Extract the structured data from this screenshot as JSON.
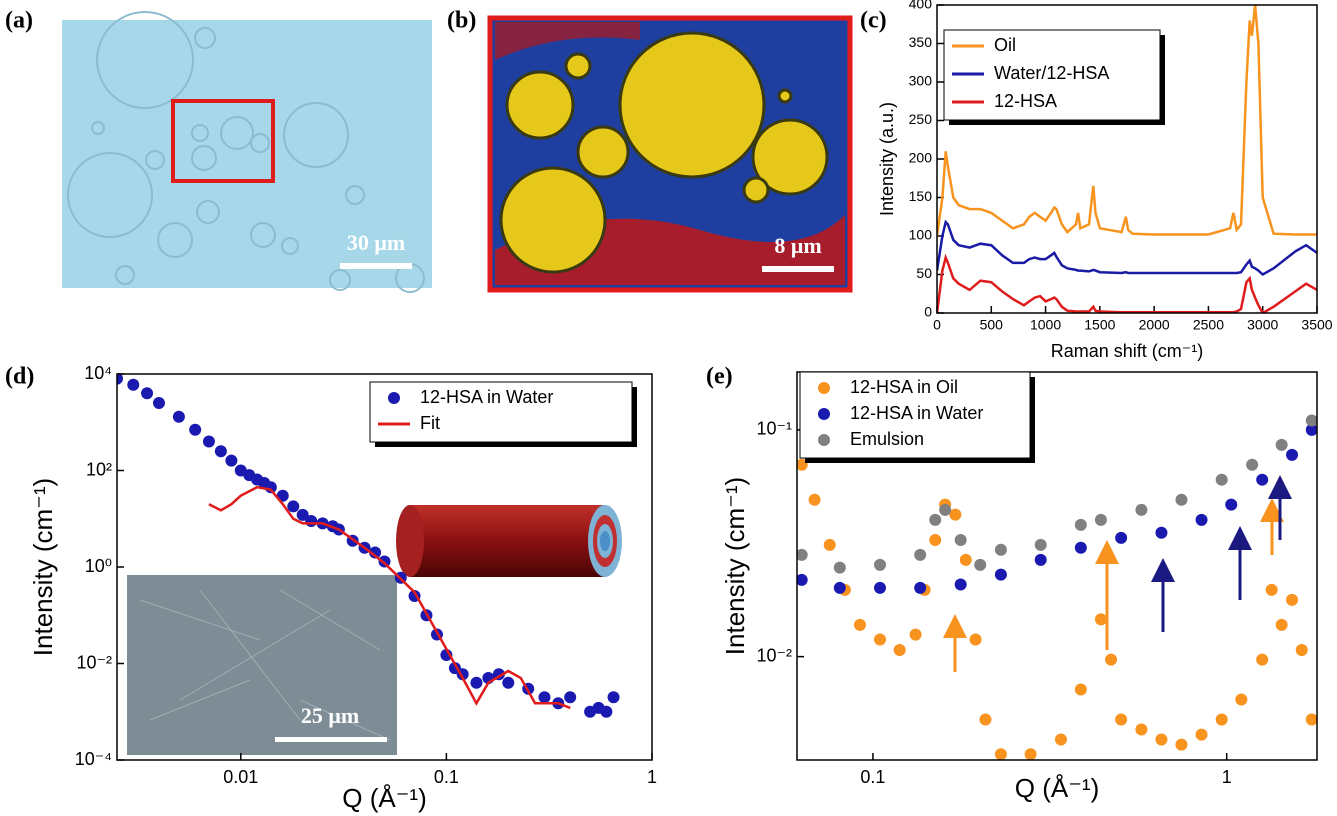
{
  "images": [
    {
      "label": "(a)",
      "scale_bar": "30 μm"
    },
    {
      "label": "(b)",
      "scale_bar": "8 μm"
    }
  ],
  "chart_data": [
    {
      "type": "line",
      "panel_label": "(c)",
      "xlabel": "Raman shift (cm⁻¹)",
      "ylabel": "Intensity (a.u.)",
      "xlim": [
        0,
        3500
      ],
      "ylim": [
        0,
        400
      ],
      "xticks": [
        0,
        500,
        1000,
        1500,
        2000,
        2500,
        3000,
        3500
      ],
      "yticks": [
        0,
        50,
        100,
        150,
        200,
        250,
        300,
        350,
        400
      ],
      "legend": "upper left",
      "x": [
        0,
        50,
        80,
        100,
        150,
        200,
        300,
        400,
        500,
        600,
        700,
        800,
        850,
        900,
        950,
        1000,
        1050,
        1080,
        1100,
        1150,
        1200,
        1280,
        1300,
        1320,
        1400,
        1440,
        1460,
        1500,
        1700,
        1740,
        1760,
        1800,
        2000,
        2500,
        2700,
        2730,
        2760,
        2800,
        2850,
        2880,
        2900,
        2930,
        2960,
        3000,
        3100,
        3300,
        3400,
        3500
      ],
      "series": [
        {
          "name": "Oil",
          "color": "#f7931e",
          "values": [
            100,
            150,
            210,
            190,
            150,
            140,
            135,
            135,
            130,
            120,
            110,
            115,
            125,
            130,
            125,
            120,
            130,
            137,
            135,
            115,
            105,
            115,
            130,
            110,
            115,
            165,
            130,
            110,
            105,
            125,
            108,
            103,
            102,
            102,
            110,
            130,
            108,
            115,
            300,
            380,
            360,
            400,
            350,
            150,
            103,
            102,
            102,
            102
          ]
        },
        {
          "name": "Water/12-HSA",
          "color": "#1a1aa6",
          "values": [
            55,
            100,
            118,
            115,
            95,
            88,
            85,
            90,
            88,
            75,
            65,
            65,
            70,
            72,
            70,
            70,
            75,
            78,
            73,
            62,
            58,
            56,
            55,
            55,
            54,
            56,
            55,
            53,
            52,
            53,
            52,
            52,
            52,
            52,
            52,
            52,
            52,
            53,
            63,
            68,
            60,
            58,
            55,
            50,
            58,
            80,
            88,
            78
          ]
        },
        {
          "name": "12-HSA",
          "color": "#e01b1b",
          "values": [
            0,
            55,
            72,
            65,
            45,
            38,
            30,
            42,
            40,
            28,
            18,
            10,
            15,
            20,
            22,
            15,
            18,
            20,
            18,
            8,
            3,
            2,
            2,
            2,
            2,
            8,
            3,
            2,
            1,
            1,
            1,
            1,
            1,
            1,
            1,
            1,
            2,
            5,
            40,
            45,
            30,
            20,
            10,
            0,
            8,
            28,
            38,
            30
          ]
        }
      ]
    },
    {
      "type": "scatter",
      "panel_label": "(d)",
      "xlabel": "Q (Å⁻¹)",
      "ylabel": "Intensity (cm⁻¹)",
      "inset_scale_bar": "25 μm",
      "xscale": "log",
      "yscale": "log",
      "xlim": [
        0.0025,
        1
      ],
      "ylim": [
        0.0001,
        10000
      ],
      "xticks": [
        0.01,
        0.1,
        1
      ],
      "yticks": [
        {
          "value": 10000,
          "label": "10⁴"
        },
        {
          "value": 100,
          "label": "10²"
        },
        {
          "value": 1,
          "label": "10⁰"
        },
        {
          "value": 0.01,
          "label": "10⁻²"
        },
        {
          "value": 0.0001,
          "label": "10⁻⁴"
        }
      ],
      "legend": "upper right",
      "series": [
        {
          "name": "12-HSA in Water",
          "color": "#1a1ab0",
          "kind": "points",
          "x": [
            0.0025,
            0.003,
            0.0035,
            0.004,
            0.005,
            0.006,
            0.007,
            0.008,
            0.009,
            0.01,
            0.011,
            0.012,
            0.013,
            0.014,
            0.016,
            0.018,
            0.02,
            0.022,
            0.025,
            0.028,
            0.03,
            0.035,
            0.04,
            0.045,
            0.05,
            0.06,
            0.07,
            0.08,
            0.09,
            0.1,
            0.11,
            0.12,
            0.14,
            0.16,
            0.18,
            0.2,
            0.25,
            0.3,
            0.35,
            0.4,
            0.5,
            0.55,
            0.6,
            0.65
          ],
          "values": [
            8000,
            6000,
            4000,
            2500,
            1300,
            700,
            400,
            250,
            160,
            100,
            80,
            65,
            55,
            45,
            30,
            18,
            12,
            9,
            8,
            7,
            6,
            3.5,
            2.5,
            2,
            1.3,
            0.6,
            0.25,
            0.1,
            0.04,
            0.015,
            0.008,
            0.006,
            0.004,
            0.005,
            0.006,
            0.004,
            0.003,
            0.002,
            0.0015,
            0.002,
            0.001,
            0.0012,
            0.001,
            0.002
          ]
        },
        {
          "name": "Fit",
          "color": "#e01b1b",
          "kind": "line",
          "x": [
            0.007,
            0.008,
            0.009,
            0.01,
            0.012,
            0.014,
            0.016,
            0.018,
            0.02,
            0.025,
            0.03,
            0.04,
            0.05,
            0.07,
            0.1,
            0.12,
            0.14,
            0.16,
            0.2,
            0.23,
            0.27,
            0.3,
            0.35,
            0.4
          ],
          "values": [
            20,
            15,
            20,
            30,
            45,
            40,
            20,
            10,
            8,
            8,
            6,
            2.5,
            1.2,
            0.3,
            0.02,
            0.005,
            0.0015,
            0.004,
            0.007,
            0.005,
            0.0015,
            0.0015,
            0.0015,
            0.0012
          ]
        }
      ]
    },
    {
      "type": "scatter",
      "panel_label": "(e)",
      "xlabel": "Q (Å⁻¹)",
      "ylabel": "Intensity (cm⁻¹)",
      "xscale": "log",
      "yscale": "log",
      "xlim": [
        0.061,
        1.8
      ],
      "ylim": [
        0.0035,
        0.18
      ],
      "xticks": [
        0.1,
        1
      ],
      "yticks": [
        {
          "value": 0.1,
          "label": "10⁻¹"
        },
        {
          "value": 0.01,
          "label": "10⁻²"
        }
      ],
      "legend": "upper left",
      "series": [
        {
          "name": "12-HSA in Oil",
          "color": "#f7931e",
          "kind": "points",
          "x": [
            0.0629,
            0.0684,
            0.0755,
            0.0833,
            0.0919,
            0.1047,
            0.119,
            0.132,
            0.14,
            0.15,
            0.16,
            0.171,
            0.183,
            0.195,
            0.208,
            0.23,
            0.279,
            0.34,
            0.387,
            0.441,
            0.471,
            0.503,
            0.574,
            0.654,
            0.745,
            0.849,
            0.968,
            1.1,
            1.26,
            1.34,
            1.43,
            1.53,
            1.63,
            1.74
          ],
          "values": [
            0.0702,
            0.0492,
            0.0311,
            0.0197,
            0.0138,
            0.0119,
            0.0107,
            0.0125,
            0.0197,
            0.0327,
            0.0468,
            0.0423,
            0.0267,
            0.0119,
            0.00528,
            0.00371,
            0.00371,
            0.00431,
            0.00716,
            0.0146,
            0.0097,
            0.00528,
            0.00477,
            0.00431,
            0.00409,
            0.00453,
            0.00528,
            0.00647,
            0.0097,
            0.0197,
            0.0138,
            0.0178,
            0.0107,
            0.00528
          ]
        },
        {
          "name": "12-HSA in Water",
          "color": "#1a1ab0",
          "kind": "points",
          "x": [
            0.0629,
            0.0806,
            0.1047,
            0.136,
            0.177,
            0.23,
            0.298,
            0.387,
            0.503,
            0.654,
            0.849,
            1.03,
            1.26,
            1.53,
            1.74
          ],
          "values": [
            0.0218,
            0.0201,
            0.0201,
            0.0201,
            0.0208,
            0.023,
            0.0267,
            0.0302,
            0.0334,
            0.0352,
            0.0401,
            0.0468,
            0.0603,
            0.0776,
            0.1
          ]
        },
        {
          "name": "Emulsion",
          "color": "#808080",
          "kind": "points",
          "x": [
            0.0629,
            0.0806,
            0.1047,
            0.136,
            0.15,
            0.16,
            0.177,
            0.201,
            0.23,
            0.298,
            0.387,
            0.441,
            0.574,
            0.745,
            0.968,
            1.18,
            1.43,
            1.74
          ],
          "values": [
            0.0281,
            0.0247,
            0.0254,
            0.0281,
            0.0401,
            0.0444,
            0.0327,
            0.0254,
            0.0296,
            0.0311,
            0.0381,
            0.0401,
            0.0444,
            0.0492,
            0.0603,
            0.0702,
            0.0859,
            0.11
          ]
        }
      ]
    }
  ]
}
